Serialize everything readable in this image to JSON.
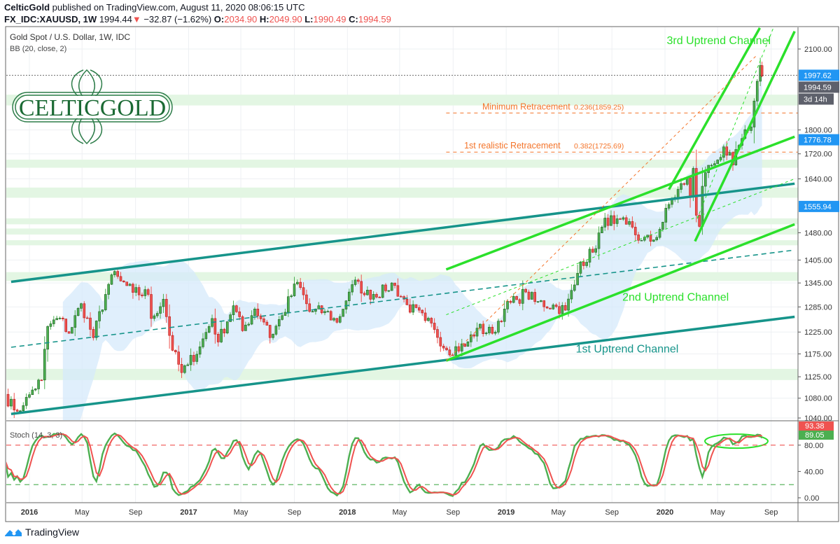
{
  "header": {
    "author": "CelticGold",
    "published": "published on TradingView.com, August 11, 2020 08:06:15 UTC",
    "symbol": "FX_IDC:XAUUSD, 1W",
    "last": "1994.44",
    "change": "−32.87 (−1.62%)",
    "o_label": "O:",
    "o": "2034.90",
    "h_label": "H:",
    "h": "2049.90",
    "l_label": "L:",
    "l": "1990.49",
    "c_label": "C:",
    "c": "1994.59"
  },
  "footer": {
    "brand": "TradingView"
  },
  "logo": {
    "text": "CELTICGOLD"
  },
  "chart_data": {
    "type": "candlestick",
    "title": "Gold Spot / U.S. Dollar, 1W, IDC",
    "indicator": "BB (20, close, 2)",
    "y_scale": "log",
    "ylim": [
      1010,
      2200
    ],
    "xlim": [
      "2015-11-06",
      "2020-11-01"
    ],
    "grid": true,
    "colors": {
      "up": "#4caf50",
      "down": "#ef5350",
      "channel1": "#16948a",
      "channel2": "#2be02b",
      "fib": "#f4742a",
      "bb_fill": "#d6eafb",
      "zone": "#e3f6e3",
      "label_blue": "#2196f3"
    },
    "approx_weekly_closes": [
      [
        "2015-11-06",
        1088
      ],
      [
        "2015-11-27",
        1056
      ],
      [
        "2015-12-18",
        1065
      ],
      [
        "2016-01-08",
        1097
      ],
      [
        "2016-01-29",
        1118
      ],
      [
        "2016-02-12",
        1238
      ],
      [
        "2016-03-11",
        1258
      ],
      [
        "2016-04-01",
        1222
      ],
      [
        "2016-04-29",
        1293
      ],
      [
        "2016-05-27",
        1212
      ],
      [
        "2016-06-24",
        1316
      ],
      [
        "2016-07-08",
        1366
      ],
      [
        "2016-07-29",
        1350
      ],
      [
        "2016-08-26",
        1321
      ],
      [
        "2016-09-30",
        1316
      ],
      [
        "2016-10-07",
        1257
      ],
      [
        "2016-11-04",
        1304
      ],
      [
        "2016-11-25",
        1183
      ],
      [
        "2016-12-16",
        1134
      ],
      [
        "2016-12-30",
        1151
      ],
      [
        "2017-01-27",
        1191
      ],
      [
        "2017-02-24",
        1257
      ],
      [
        "2017-03-10",
        1202
      ],
      [
        "2017-04-14",
        1288
      ],
      [
        "2017-05-05",
        1228
      ],
      [
        "2017-06-02",
        1280
      ],
      [
        "2017-06-30",
        1241
      ],
      [
        "2017-07-07",
        1212
      ],
      [
        "2017-08-04",
        1264
      ],
      [
        "2017-09-08",
        1347
      ],
      [
        "2017-10-06",
        1274
      ],
      [
        "2017-11-10",
        1274
      ],
      [
        "2017-12-08",
        1248
      ],
      [
        "2018-01-05",
        1322
      ],
      [
        "2018-01-26",
        1349
      ],
      [
        "2018-02-09",
        1315
      ],
      [
        "2018-03-30",
        1325
      ],
      [
        "2018-04-13",
        1345
      ],
      [
        "2018-05-18",
        1290
      ],
      [
        "2018-06-29",
        1252
      ],
      [
        "2018-07-20",
        1231
      ],
      [
        "2018-08-17",
        1184
      ],
      [
        "2018-09-28",
        1192
      ],
      [
        "2018-10-26",
        1234
      ],
      [
        "2018-11-30",
        1222
      ],
      [
        "2018-12-28",
        1280
      ],
      [
        "2019-01-25",
        1303
      ],
      [
        "2019-02-15",
        1322
      ],
      [
        "2019-03-08",
        1298
      ],
      [
        "2019-04-26",
        1286
      ],
      [
        "2019-05-17",
        1277
      ],
      [
        "2019-06-07",
        1340
      ],
      [
        "2019-06-21",
        1400
      ],
      [
        "2019-07-19",
        1426
      ],
      [
        "2019-08-09",
        1496
      ],
      [
        "2019-08-30",
        1529
      ],
      [
        "2019-09-06",
        1506
      ],
      [
        "2019-10-04",
        1504
      ],
      [
        "2019-11-08",
        1459
      ],
      [
        "2019-12-06",
        1460
      ],
      [
        "2019-12-27",
        1510
      ],
      [
        "2020-01-10",
        1562
      ],
      [
        "2020-02-21",
        1643
      ],
      [
        "2020-02-28",
        1586
      ],
      [
        "2020-03-06",
        1673
      ],
      [
        "2020-03-13",
        1530
      ],
      [
        "2020-03-20",
        1498
      ],
      [
        "2020-03-27",
        1617
      ],
      [
        "2020-04-10",
        1683
      ],
      [
        "2020-04-17",
        1683
      ],
      [
        "2020-05-01",
        1700
      ],
      [
        "2020-05-15",
        1743
      ],
      [
        "2020-06-05",
        1684
      ],
      [
        "2020-06-26",
        1771
      ],
      [
        "2020-07-10",
        1798
      ],
      [
        "2020-07-17",
        1810
      ],
      [
        "2020-07-24",
        1902
      ],
      [
        "2020-07-31",
        1975
      ],
      [
        "2020-08-07",
        2035
      ],
      [
        "2020-08-11",
        1994.59
      ]
    ],
    "y_ticks": [
      2100,
      1800,
      1720,
      1640,
      1480,
      1405,
      1345,
      1285,
      1225,
      1175,
      1125,
      1080,
      1040
    ],
    "x_ticks": [
      {
        "label": "2016",
        "date": "2016-01-01",
        "major": true
      },
      {
        "label": "May",
        "date": "2016-05-01"
      },
      {
        "label": "Sep",
        "date": "2016-09-01"
      },
      {
        "label": "2017",
        "date": "2017-01-01",
        "major": true
      },
      {
        "label": "May",
        "date": "2017-05-01"
      },
      {
        "label": "Sep",
        "date": "2017-09-01"
      },
      {
        "label": "2018",
        "date": "2018-01-01",
        "major": true
      },
      {
        "label": "May",
        "date": "2018-05-01"
      },
      {
        "label": "Sep",
        "date": "2018-09-01"
      },
      {
        "label": "2019",
        "date": "2019-01-01",
        "major": true
      },
      {
        "label": "May",
        "date": "2019-05-01"
      },
      {
        "label": "Sep",
        "date": "2019-09-01"
      },
      {
        "label": "2020",
        "date": "2020-01-01",
        "major": true
      },
      {
        "label": "May",
        "date": "2020-05-01"
      },
      {
        "label": "Sep",
        "date": "2020-09-01"
      }
    ],
    "price_labels": [
      {
        "text": "1997.62",
        "price": 1997.62,
        "color": "#2196f3",
        "line": "dotted"
      },
      {
        "text": "1994.59",
        "price": 1968,
        "color": "#5d606b"
      },
      {
        "text": "3d 14h",
        "price": 1920,
        "color": "#5d606b"
      },
      {
        "text": "1776.78",
        "price": 1776.78,
        "color": "#2196f3"
      },
      {
        "text": "1555.94",
        "price": 1555.94,
        "color": "#2196f3"
      }
    ],
    "zones": [
      [
        1886,
        1925
      ],
      [
        1675,
        1701
      ],
      [
        1582,
        1613
      ],
      [
        1504,
        1521
      ],
      [
        1475,
        1492
      ],
      [
        1445,
        1459
      ],
      [
        1350,
        1373
      ],
      [
        1118,
        1142
      ]
    ],
    "trendlines": [
      {
        "name": "1st Uptrend Channel lower",
        "from": [
          "2015-11-20",
          1048
        ],
        "to": [
          "2020-10-25",
          1261
        ],
        "color": "channel1",
        "style": "solid"
      },
      {
        "name": "1st Uptrend Channel upper",
        "from": [
          "2015-11-20",
          1348
        ],
        "to": [
          "2020-10-25",
          1625
        ],
        "color": "channel1",
        "style": "solid"
      },
      {
        "name": "1st Uptrend Channel middle",
        "from": [
          "2015-11-20",
          1190
        ],
        "to": [
          "2020-10-25",
          1432
        ],
        "color": "channel1",
        "style": "dashed"
      },
      {
        "name": "2nd Uptrend Channel lower",
        "from": [
          "2018-08-16",
          1160
        ],
        "to": [
          "2020-10-25",
          1504
        ],
        "color": "channel2",
        "style": "solid"
      },
      {
        "name": "2nd Uptrend Channel upper",
        "from": [
          "2018-08-16",
          1380
        ],
        "to": [
          "2020-10-25",
          1777
        ],
        "color": "channel2",
        "style": "solid"
      },
      {
        "name": "2nd Uptrend Channel middle",
        "from": [
          "2018-08-16",
          1266
        ],
        "to": [
          "2020-10-25",
          1640
        ],
        "color": "channel2",
        "style": "thin-dashed"
      },
      {
        "name": "3rd Uptrend Channel upper",
        "from": [
          "2020-01-10",
          1607
        ],
        "to": [
          "2020-08-06",
          2186
        ],
        "color": "channel2",
        "style": "solid"
      },
      {
        "name": "3rd Uptrend Channel lower",
        "from": [
          "2020-03-10",
          1456
        ],
        "to": [
          "2020-10-25",
          2172
        ],
        "color": "channel2",
        "style": "solid"
      },
      {
        "name": "3rd Uptrend Channel middle",
        "from": [
          "2020-03-15",
          1520
        ],
        "to": [
          "2020-09-20",
          2250
        ],
        "color": "channel2",
        "style": "thin-dashed"
      },
      {
        "name": "Fib trend",
        "from": [
          "2018-08-16",
          1160
        ],
        "to": [
          "2020-07-28",
          2072
        ],
        "color": "fib",
        "style": "thin-dashed"
      }
    ],
    "fib_levels": [
      {
        "label": "Minimum Retracement",
        "level": "0.236(1859.25)",
        "price": 1859.25
      },
      {
        "label": "1st realistic Retracement",
        "level": "0.382(1725.69)",
        "price": 1725.69
      }
    ],
    "annotations": [
      {
        "text": "3rd Uptrend Channel",
        "date": "2020-01-05",
        "price": 2120,
        "color": "#2be02b"
      },
      {
        "text": "2nd Uptrend Channel",
        "date": "2019-09-25",
        "price": 1300,
        "color": "#2be02b"
      },
      {
        "text": "1st Uptrend Channel",
        "date": "2019-06-10",
        "price": 1178,
        "color": "#16948a"
      }
    ],
    "stoch": {
      "label": "Stoch (14, 3, 3)",
      "upper": 80,
      "lower": 20,
      "ylim": [
        -5,
        100
      ],
      "y_ticks": [
        {
          "v": 80,
          "label": "80.00"
        },
        {
          "v": 40,
          "label": "40.00"
        },
        {
          "v": 0,
          "label": "0.00"
        }
      ],
      "k_value": "89.05",
      "d_value": "93.38",
      "k_color": "#4caf50",
      "d_color": "#ef5350"
    }
  }
}
